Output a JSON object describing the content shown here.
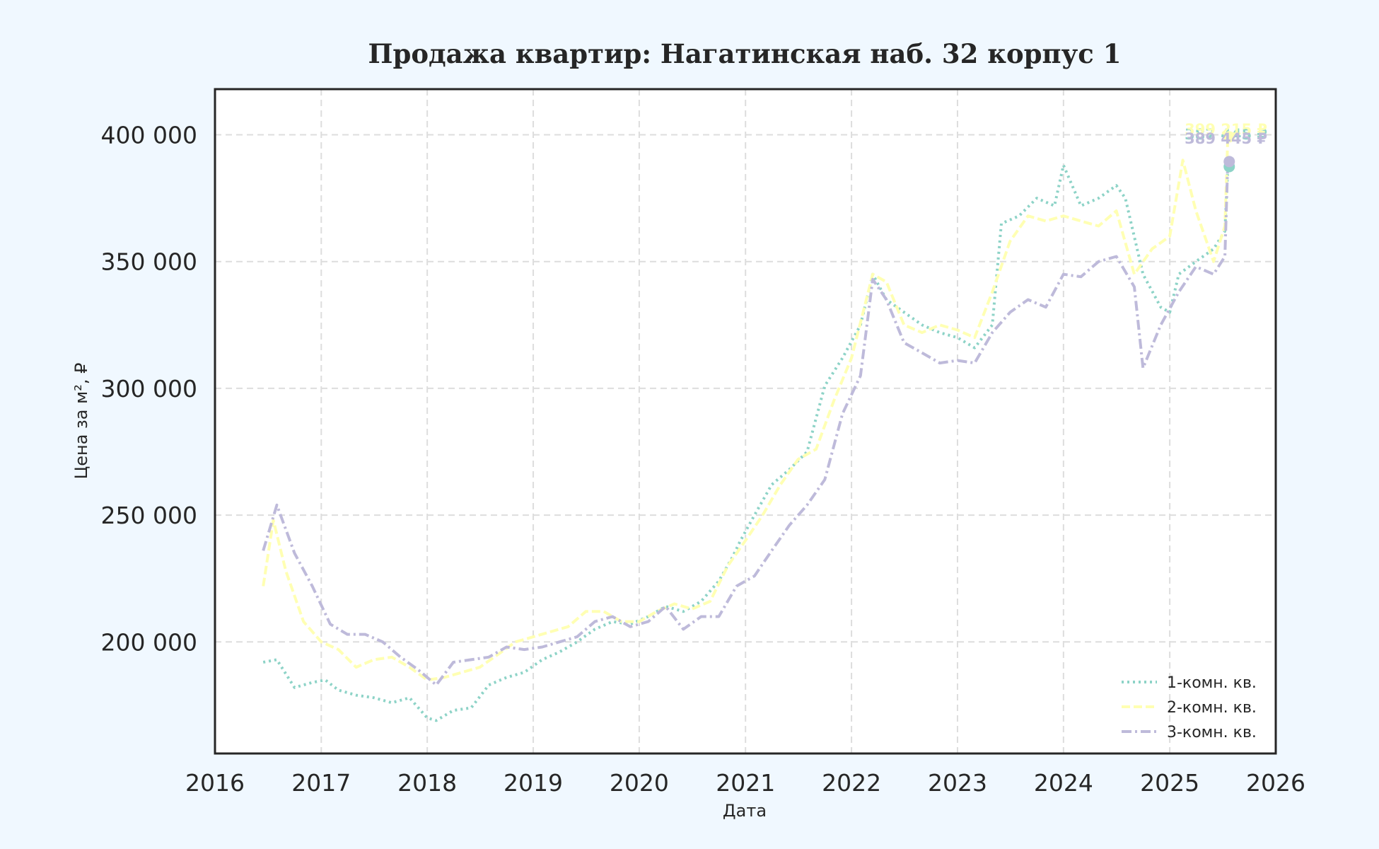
{
  "chart_data": {
    "type": "line",
    "title": "Продажа квартир: Нагатинская наб. 32 корпус 1",
    "xlabel": "Дата",
    "ylabel": "Цена за м², ₽",
    "x_range": [
      "2016-01-01",
      "2026-01-01"
    ],
    "ylim": [
      156000,
      418000
    ],
    "grid": true,
    "legend_placement": "lower-right",
    "x_ticks": [
      "2016",
      "2017",
      "2018",
      "2019",
      "2020",
      "2021",
      "2022",
      "2023",
      "2024",
      "2025",
      "2026"
    ],
    "y_ticks": [
      {
        "value": 200000,
        "label": "200 000"
      },
      {
        "value": 250000,
        "label": "250 000"
      },
      {
        "value": 300000,
        "label": "300 000"
      },
      {
        "value": 350000,
        "label": "350 000"
      },
      {
        "value": 400000,
        "label": "400 000"
      }
    ],
    "series": [
      {
        "name": "1-комн. кв.",
        "color": "#8dd3c7",
        "style": "dotted",
        "end_label": "387 445 ₽",
        "x": [
          "2016-06-15",
          "2016-08-01",
          "2016-10-01",
          "2016-12-01",
          "2017-01-15",
          "2017-03-01",
          "2017-05-01",
          "2017-07-01",
          "2017-09-01",
          "2017-11-01",
          "2018-01-01",
          "2018-02-01",
          "2018-04-01",
          "2018-06-01",
          "2018-08-01",
          "2018-10-01",
          "2018-12-01",
          "2019-02-01",
          "2019-04-01",
          "2019-06-01",
          "2019-08-01",
          "2019-10-01",
          "2019-12-01",
          "2020-02-01",
          "2020-04-01",
          "2020-06-01",
          "2020-08-01",
          "2020-10-01",
          "2020-11-15",
          "2020-12-15",
          "2021-02-01",
          "2021-04-01",
          "2021-06-01",
          "2021-08-01",
          "2021-10-01",
          "2021-12-01",
          "2022-02-01",
          "2022-03-15",
          "2022-05-01",
          "2022-07-01",
          "2022-09-01",
          "2022-11-01",
          "2023-01-01",
          "2023-03-01",
          "2023-05-01",
          "2023-06-01",
          "2023-08-01",
          "2023-10-01",
          "2023-12-01",
          "2024-01-01",
          "2024-03-01",
          "2024-05-01",
          "2024-07-01",
          "2024-08-01",
          "2024-10-01",
          "2024-12-01",
          "2025-01-01",
          "2025-02-01",
          "2025-04-01",
          "2025-06-01",
          "2025-07-10",
          "2025-07-20"
        ],
        "values": [
          192000,
          193000,
          182000,
          184000,
          185000,
          181000,
          179000,
          178000,
          176000,
          178000,
          170000,
          169000,
          173000,
          174000,
          183000,
          186000,
          188000,
          193000,
          196000,
          200000,
          205000,
          208000,
          207000,
          210000,
          214000,
          212000,
          216000,
          224000,
          233000,
          240000,
          250000,
          262000,
          268000,
          275000,
          301000,
          312000,
          325000,
          345000,
          335000,
          330000,
          325000,
          322000,
          320000,
          316000,
          325000,
          365000,
          368000,
          375000,
          372000,
          388000,
          372000,
          375000,
          380000,
          375000,
          345000,
          332000,
          330000,
          345000,
          350000,
          355000,
          362000,
          387445
        ]
      },
      {
        "name": "2-комн. кв.",
        "color": "#ffffb3",
        "style": "dashed",
        "end_label": "399 215 ₽",
        "x": [
          "2016-06-15",
          "2016-07-20",
          "2016-09-01",
          "2016-11-01",
          "2017-01-01",
          "2017-03-01",
          "2017-05-01",
          "2017-07-01",
          "2017-09-01",
          "2017-11-01",
          "2018-01-01",
          "2018-03-01",
          "2018-05-01",
          "2018-07-01",
          "2018-09-01",
          "2018-11-01",
          "2019-01-01",
          "2019-03-01",
          "2019-05-01",
          "2019-07-01",
          "2019-09-01",
          "2019-11-01",
          "2020-01-01",
          "2020-03-01",
          "2020-05-01",
          "2020-07-01",
          "2020-09-01",
          "2020-11-01",
          "2021-01-01",
          "2021-03-01",
          "2021-05-01",
          "2021-07-01",
          "2021-09-01",
          "2021-11-01",
          "2022-01-01",
          "2022-03-15",
          "2022-05-01",
          "2022-07-01",
          "2022-09-01",
          "2022-11-01",
          "2023-01-01",
          "2023-03-01",
          "2023-05-01",
          "2023-07-01",
          "2023-09-01",
          "2023-11-01",
          "2024-01-01",
          "2024-03-01",
          "2024-05-01",
          "2024-07-01",
          "2024-09-01",
          "2024-11-01",
          "2025-01-01",
          "2025-02-15",
          "2025-04-01",
          "2025-06-01",
          "2025-07-10",
          "2025-07-20"
        ],
        "values": [
          222000,
          248000,
          228000,
          208000,
          200000,
          197000,
          190000,
          193000,
          194000,
          190000,
          185000,
          186000,
          188000,
          190000,
          195000,
          200000,
          202000,
          204000,
          206000,
          212000,
          212000,
          208000,
          208000,
          212000,
          215000,
          213000,
          216000,
          230000,
          240000,
          250000,
          262000,
          272000,
          276000,
          295000,
          312000,
          345000,
          342000,
          325000,
          322000,
          325000,
          323000,
          320000,
          338000,
          358000,
          368000,
          366000,
          368000,
          366000,
          364000,
          370000,
          345000,
          355000,
          360000,
          390000,
          370000,
          350000,
          364000,
          399215
        ]
      },
      {
        "name": "3-комн. кв.",
        "color": "#bebada",
        "style": "dashdot",
        "end_label": "389 445 ₽",
        "x": [
          "2016-06-15",
          "2016-08-01",
          "2016-10-01",
          "2016-12-01",
          "2017-02-01",
          "2017-04-01",
          "2017-06-01",
          "2017-08-01",
          "2017-10-01",
          "2017-12-01",
          "2018-02-01",
          "2018-04-01",
          "2018-06-01",
          "2018-08-01",
          "2018-10-01",
          "2018-12-01",
          "2019-02-01",
          "2019-04-01",
          "2019-06-01",
          "2019-08-01",
          "2019-10-01",
          "2019-12-01",
          "2020-02-01",
          "2020-04-01",
          "2020-06-01",
          "2020-08-01",
          "2020-10-01",
          "2020-12-01",
          "2021-02-01",
          "2021-04-01",
          "2021-06-01",
          "2021-08-01",
          "2021-10-01",
          "2021-12-01",
          "2022-02-01",
          "2022-03-15",
          "2022-05-01",
          "2022-07-01",
          "2022-09-01",
          "2022-11-01",
          "2023-01-01",
          "2023-03-01",
          "2023-05-01",
          "2023-07-01",
          "2023-09-01",
          "2023-11-01",
          "2024-01-01",
          "2024-03-01",
          "2024-05-01",
          "2024-07-01",
          "2024-09-01",
          "2024-10-01",
          "2024-12-01",
          "2025-02-01",
          "2025-04-01",
          "2025-06-01",
          "2025-07-10",
          "2025-07-20"
        ],
        "values": [
          236000,
          254000,
          235000,
          222000,
          207000,
          203000,
          203000,
          200000,
          194000,
          189000,
          183000,
          192000,
          193000,
          194000,
          198000,
          197000,
          198000,
          200000,
          202000,
          208000,
          210000,
          206000,
          208000,
          214000,
          205000,
          210000,
          210000,
          222000,
          226000,
          236000,
          246000,
          254000,
          264000,
          290000,
          305000,
          343000,
          335000,
          318000,
          314000,
          310000,
          311000,
          310000,
          322000,
          330000,
          335000,
          332000,
          345000,
          344000,
          350000,
          352000,
          340000,
          308000,
          325000,
          338000,
          348000,
          345000,
          352000,
          389445
        ]
      }
    ]
  }
}
